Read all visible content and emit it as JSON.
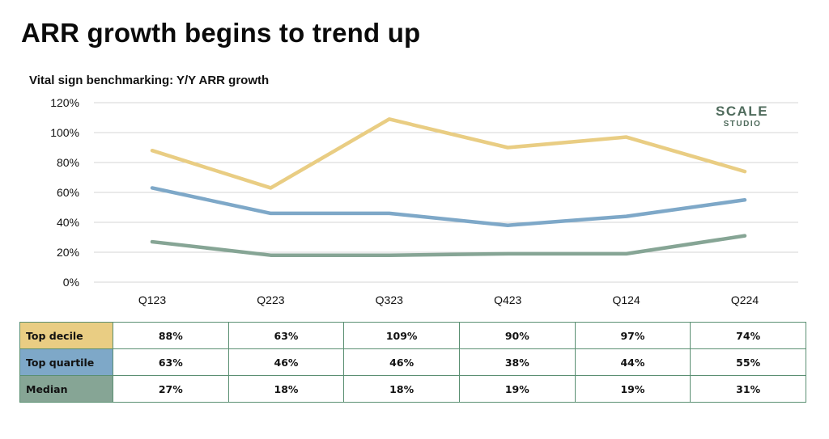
{
  "page": {
    "title": "ARR growth begins to trend up",
    "subtitle": "Vital sign benchmarking: Y/Y ARR growth",
    "logo": {
      "line1": "SCALE",
      "line2": "STUDIO"
    }
  },
  "chart_data": {
    "type": "line",
    "categories": [
      "Q123",
      "Q223",
      "Q323",
      "Q423",
      "Q124",
      "Q224"
    ],
    "ylim": [
      0,
      120
    ],
    "yticks": [
      0,
      20,
      40,
      60,
      80,
      100,
      120
    ],
    "ytick_labels": [
      "0%",
      "20%",
      "40%",
      "60%",
      "80%",
      "100%",
      "120%"
    ],
    "grid": true,
    "legend": "table-below",
    "series": [
      {
        "name": "Top decile",
        "color": "#e9cd83",
        "values": [
          88,
          63,
          109,
          90,
          97,
          74
        ],
        "labels": [
          "88%",
          "63%",
          "109%",
          "90%",
          "97%",
          "74%"
        ]
      },
      {
        "name": "Top quartile",
        "color": "#7ea8c8",
        "values": [
          63,
          46,
          46,
          38,
          44,
          55
        ],
        "labels": [
          "63%",
          "46%",
          "46%",
          "38%",
          "44%",
          "55%"
        ]
      },
      {
        "name": "Median",
        "color": "#86a595",
        "values": [
          27,
          18,
          18,
          19,
          19,
          31
        ],
        "labels": [
          "27%",
          "18%",
          "18%",
          "19%",
          "19%",
          "31%"
        ]
      }
    ]
  }
}
